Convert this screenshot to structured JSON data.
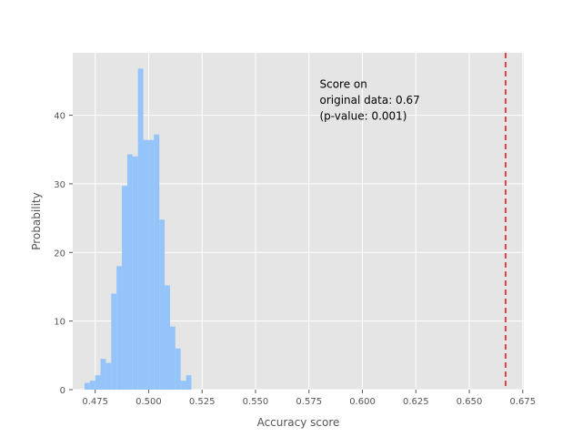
{
  "chart_data": {
    "type": "bar",
    "xlabel": "Accuracy score",
    "ylabel": "Probability",
    "xlim": [
      0.4645,
      0.6755
    ],
    "ylim": [
      0,
      49.1
    ],
    "xticks": [
      "0.475",
      "0.500",
      "0.525",
      "0.550",
      "0.575",
      "0.600",
      "0.625",
      "0.650",
      "0.675"
    ],
    "yticks": [
      "0",
      "10",
      "20",
      "30",
      "40"
    ],
    "grid": true,
    "bin_width": 0.0025,
    "bins": [
      {
        "x": 0.47,
        "y": 1.0
      },
      {
        "x": 0.4725,
        "y": 1.3
      },
      {
        "x": 0.475,
        "y": 2.1
      },
      {
        "x": 0.4775,
        "y": 4.5
      },
      {
        "x": 0.48,
        "y": 3.9
      },
      {
        "x": 0.4825,
        "y": 14.0
      },
      {
        "x": 0.485,
        "y": 18.0
      },
      {
        "x": 0.4875,
        "y": 29.7
      },
      {
        "x": 0.49,
        "y": 34.3
      },
      {
        "x": 0.4925,
        "y": 34.0
      },
      {
        "x": 0.495,
        "y": 46.8
      },
      {
        "x": 0.4975,
        "y": 36.4
      },
      {
        "x": 0.5,
        "y": 36.4
      },
      {
        "x": 0.5025,
        "y": 37.2
      },
      {
        "x": 0.505,
        "y": 24.8
      },
      {
        "x": 0.5075,
        "y": 15.2
      },
      {
        "x": 0.51,
        "y": 9.2
      },
      {
        "x": 0.5125,
        "y": 6.0
      },
      {
        "x": 0.515,
        "y": 1.3
      },
      {
        "x": 0.5175,
        "y": 2.1
      }
    ],
    "bar_color": "#94c4fa",
    "reference_line": {
      "x": 0.667,
      "color": "#e41a1c",
      "style": "dashed"
    },
    "annotation": {
      "lines": [
        "Score on",
        "original data: 0.67",
        "(p-value: 0.001)"
      ]
    }
  }
}
